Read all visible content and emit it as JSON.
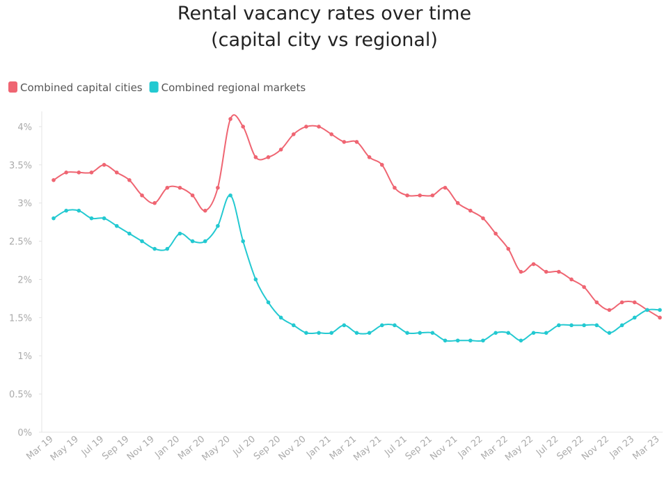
{
  "chart_data": {
    "type": "line",
    "title": "Rental vacancy rates over time",
    "subtitle": "(capital city vs regional)",
    "categories": [
      "Mar 19",
      null,
      "May 19",
      null,
      "Jul 19",
      null,
      "Sep 19",
      null,
      "Nov 19",
      null,
      "Jan 20",
      null,
      "Mar 20",
      null,
      "May 20",
      null,
      "Jul 20",
      null,
      "Sep 20",
      null,
      "Nov 20",
      null,
      "Jan 21",
      null,
      "Mar 21",
      null,
      "May 21",
      null,
      "Jul 21",
      null,
      "Sep 21",
      null,
      "Nov 21",
      null,
      "Jan 22",
      null,
      "Mar 22",
      null,
      "May 22",
      null,
      "Jul 22",
      null,
      "Sep 22",
      null,
      "Nov 22",
      null,
      "Jan 23",
      null,
      "Mar 23"
    ],
    "series": [
      {
        "name": "Combined capital cities",
        "color": "#ef6572",
        "values": [
          3.3,
          3.4,
          3.4,
          3.4,
          3.5,
          3.4,
          3.3,
          3.1,
          3.0,
          3.2,
          3.2,
          3.1,
          2.9,
          3.2,
          4.1,
          4.0,
          3.6,
          3.6,
          3.7,
          3.9,
          4.0,
          4.0,
          3.9,
          3.8,
          3.8,
          3.6,
          3.5,
          3.2,
          3.1,
          3.1,
          3.1,
          3.2,
          3.0,
          2.9,
          2.8,
          2.6,
          2.4,
          2.1,
          2.2,
          2.1,
          2.1,
          2.0,
          1.9,
          1.7,
          1.6,
          1.7,
          1.7,
          1.6,
          1.5
        ]
      },
      {
        "name": "Combined regional markets",
        "color": "#23c9d1",
        "values": [
          2.8,
          2.9,
          2.9,
          2.8,
          2.8,
          2.7,
          2.6,
          2.5,
          2.4,
          2.4,
          2.6,
          2.5,
          2.5,
          2.7,
          3.1,
          2.5,
          2.0,
          1.7,
          1.5,
          1.4,
          1.3,
          1.3,
          1.3,
          1.4,
          1.3,
          1.3,
          1.4,
          1.4,
          1.3,
          1.3,
          1.3,
          1.2,
          1.2,
          1.2,
          1.2,
          1.3,
          1.3,
          1.2,
          1.3,
          1.3,
          1.4,
          1.4,
          1.4,
          1.4,
          1.3,
          1.4,
          1.5,
          1.6,
          1.6
        ]
      }
    ],
    "ylim": [
      0,
      4.2
    ],
    "yticks": [
      {
        "value": 0,
        "label": "0%"
      },
      {
        "value": 0.5,
        "label": "0.5%"
      },
      {
        "value": 1,
        "label": "1%"
      },
      {
        "value": 1.5,
        "label": "1.5%"
      },
      {
        "value": 2,
        "label": "2%"
      },
      {
        "value": 2.5,
        "label": "2.5%"
      },
      {
        "value": 3,
        "label": "3%"
      },
      {
        "value": 3.5,
        "label": "3.5%"
      },
      {
        "value": 4,
        "label": "4%"
      }
    ],
    "grid": false
  }
}
